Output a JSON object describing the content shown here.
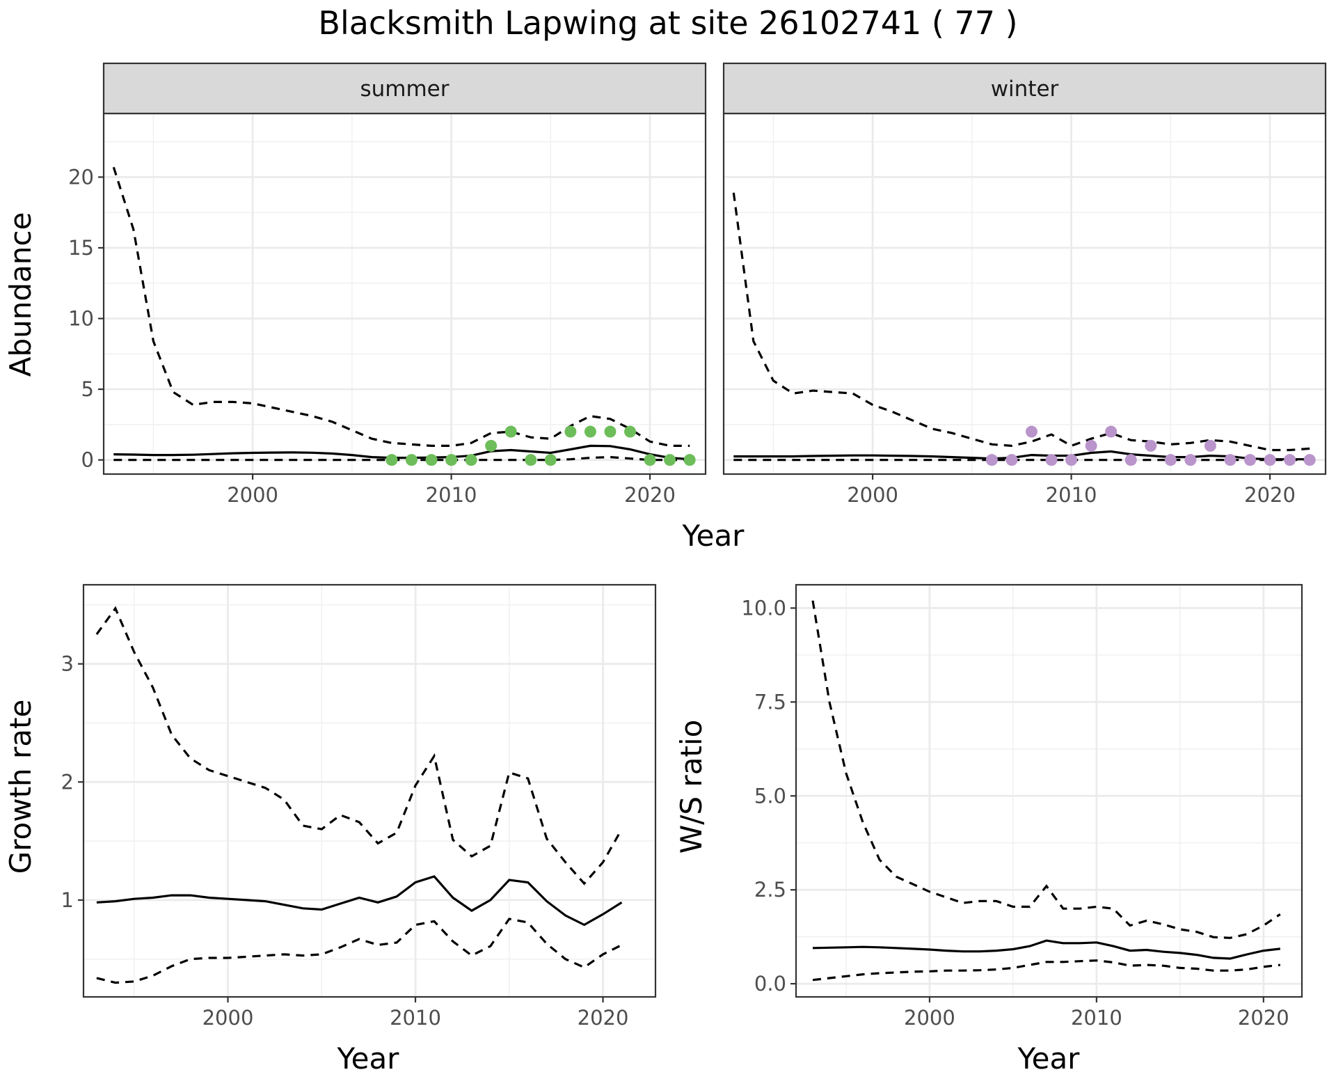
{
  "figure": {
    "title": "Blacksmith Lapwing at site 26102741 ( 77 )"
  },
  "chart_data": [
    {
      "id": "abundance",
      "type": "line",
      "facets": [
        "summer",
        "winter"
      ],
      "xlabel": "Year",
      "ylabel": "Abundance",
      "xlim": [
        1992.5,
        2022.8
      ],
      "ylim": [
        -1.0,
        24.5
      ],
      "xticks": [
        2000,
        2010,
        2020
      ],
      "yticks": [
        0,
        5,
        10,
        15,
        20
      ],
      "grid": true,
      "legend": "none",
      "colors": {
        "summer_points": "#6dbd5a",
        "winter_points": "#b995cb",
        "lines": "#000000",
        "strip_bg": "#d9d9d9"
      },
      "panels": [
        {
          "facet": "summer",
          "x": [
            1993,
            1994,
            1995,
            1996,
            1997,
            1998,
            1999,
            2000,
            2001,
            2002,
            2003,
            2004,
            2005,
            2006,
            2007,
            2008,
            2009,
            2010,
            2011,
            2012,
            2013,
            2014,
            2015,
            2016,
            2017,
            2018,
            2019,
            2020,
            2021,
            2022
          ],
          "mean": [
            0.4,
            0.38,
            0.35,
            0.35,
            0.37,
            0.42,
            0.47,
            0.5,
            0.52,
            0.53,
            0.51,
            0.45,
            0.35,
            0.2,
            0.15,
            0.15,
            0.17,
            0.2,
            0.3,
            0.62,
            0.7,
            0.6,
            0.5,
            0.75,
            1.0,
            0.98,
            0.75,
            0.4,
            0.15,
            0.05
          ],
          "upper": [
            20.7,
            16.3,
            8.4,
            4.8,
            3.9,
            4.1,
            4.1,
            4.0,
            3.7,
            3.4,
            3.1,
            2.7,
            2.1,
            1.5,
            1.2,
            1.1,
            1.0,
            1.0,
            1.2,
            1.9,
            2.0,
            1.6,
            1.5,
            2.4,
            3.1,
            2.9,
            2.2,
            1.3,
            1.0,
            1.0
          ],
          "lower": [
            0,
            0,
            0,
            0,
            0,
            0,
            0,
            0,
            0,
            0,
            0,
            0,
            0,
            0,
            0,
            0,
            0,
            0,
            0,
            0,
            0,
            0,
            0,
            0.05,
            0.15,
            0.2,
            0.1,
            0,
            0,
            0
          ],
          "points": {
            "x": [
              2007,
              2008,
              2009,
              2010,
              2011,
              2012,
              2013,
              2014,
              2015,
              2016,
              2017,
              2018,
              2019,
              2020,
              2021,
              2022
            ],
            "y": [
              0,
              0,
              0,
              0,
              0,
              1,
              2,
              0,
              0,
              2,
              2,
              2,
              2,
              0,
              0,
              0
            ]
          }
        },
        {
          "facet": "winter",
          "x": [
            1993,
            1994,
            1995,
            1996,
            1997,
            1998,
            1999,
            2000,
            2001,
            2002,
            2003,
            2004,
            2005,
            2006,
            2007,
            2008,
            2009,
            2010,
            2011,
            2012,
            2013,
            2014,
            2015,
            2016,
            2017,
            2018,
            2019,
            2020,
            2021,
            2022
          ],
          "mean": [
            0.25,
            0.25,
            0.25,
            0.25,
            0.28,
            0.3,
            0.32,
            0.32,
            0.3,
            0.28,
            0.25,
            0.2,
            0.15,
            0.1,
            0.15,
            0.35,
            0.3,
            0.3,
            0.5,
            0.6,
            0.4,
            0.3,
            0.2,
            0.2,
            0.3,
            0.25,
            0.1,
            0.05,
            0.05,
            0.05
          ],
          "upper": [
            18.9,
            8.4,
            5.6,
            4.7,
            4.9,
            4.8,
            4.7,
            3.9,
            3.4,
            2.8,
            2.2,
            1.9,
            1.5,
            1.1,
            1.0,
            1.3,
            1.8,
            1.0,
            1.5,
            1.9,
            1.4,
            1.3,
            1.1,
            1.2,
            1.4,
            1.3,
            1.0,
            0.7,
            0.7,
            0.8
          ],
          "lower": [
            0,
            0,
            0,
            0,
            0,
            0,
            0,
            0,
            0,
            0,
            0,
            0,
            0,
            0,
            0,
            0,
            0,
            0,
            0,
            0,
            0,
            0,
            0,
            0,
            0,
            0,
            0,
            0,
            0,
            0
          ],
          "points": {
            "x": [
              2006,
              2007,
              2008,
              2009,
              2010,
              2011,
              2012,
              2013,
              2014,
              2015,
              2016,
              2017,
              2018,
              2019,
              2020,
              2021,
              2022
            ],
            "y": [
              0,
              0,
              2,
              0,
              0,
              1,
              2,
              0,
              1,
              0,
              0,
              1,
              0,
              0,
              0,
              0,
              0
            ]
          }
        }
      ]
    },
    {
      "id": "growth",
      "type": "line",
      "xlabel": "Year",
      "ylabel": "Growth rate",
      "xlim": [
        1992.3,
        2022.8
      ],
      "ylim": [
        0.18,
        3.67
      ],
      "xticks": [
        2000,
        2010,
        2020
      ],
      "yticks": [
        1,
        2,
        3
      ],
      "grid": true,
      "legend": "none",
      "x": [
        1993,
        1994,
        1995,
        1996,
        1997,
        1998,
        1999,
        2000,
        2001,
        2002,
        2003,
        2004,
        2005,
        2006,
        2007,
        2008,
        2009,
        2010,
        2011,
        2012,
        2013,
        2014,
        2015,
        2016,
        2017,
        2018,
        2019,
        2020,
        2021
      ],
      "mean": [
        0.98,
        0.99,
        1.01,
        1.02,
        1.04,
        1.04,
        1.02,
        1.01,
        1.0,
        0.99,
        0.96,
        0.93,
        0.92,
        0.97,
        1.02,
        0.98,
        1.03,
        1.15,
        1.2,
        1.02,
        0.91,
        1.0,
        1.17,
        1.15,
        0.99,
        0.87,
        0.79,
        0.88,
        0.98
      ],
      "upper": [
        3.25,
        3.47,
        3.1,
        2.8,
        2.4,
        2.2,
        2.1,
        2.05,
        2.0,
        1.95,
        1.85,
        1.63,
        1.6,
        1.72,
        1.66,
        1.48,
        1.57,
        1.97,
        2.22,
        1.51,
        1.37,
        1.46,
        2.08,
        2.03,
        1.52,
        1.32,
        1.14,
        1.32,
        1.6
      ],
      "lower": [
        0.34,
        0.3,
        0.31,
        0.36,
        0.44,
        0.5,
        0.51,
        0.51,
        0.52,
        0.53,
        0.54,
        0.53,
        0.54,
        0.6,
        0.67,
        0.62,
        0.64,
        0.79,
        0.82,
        0.65,
        0.53,
        0.61,
        0.84,
        0.81,
        0.63,
        0.5,
        0.43,
        0.54,
        0.62
      ]
    },
    {
      "id": "ratio",
      "type": "line",
      "xlabel": "Year",
      "ylabel": "W/S ratio",
      "xlim": [
        1992.0,
        2022.3
      ],
      "ylim": [
        -0.35,
        10.62
      ],
      "xticks": [
        2000,
        2010,
        2020
      ],
      "yticks": [
        0.0,
        2.5,
        5.0,
        7.5,
        10.0
      ],
      "ytick_labels": [
        "0.0",
        "2.5",
        "5.0",
        "7.5",
        "10.0"
      ],
      "grid": true,
      "legend": "none",
      "x": [
        1993,
        1994,
        1995,
        1996,
        1997,
        1998,
        1999,
        2000,
        2001,
        2002,
        2003,
        2004,
        2005,
        2006,
        2007,
        2008,
        2009,
        2010,
        2011,
        2012,
        2013,
        2014,
        2015,
        2016,
        2017,
        2018,
        2019,
        2020,
        2021
      ],
      "mean": [
        0.95,
        0.96,
        0.97,
        0.98,
        0.97,
        0.95,
        0.93,
        0.91,
        0.88,
        0.86,
        0.86,
        0.88,
        0.92,
        1.0,
        1.15,
        1.08,
        1.08,
        1.1,
        1.0,
        0.88,
        0.9,
        0.85,
        0.82,
        0.77,
        0.69,
        0.67,
        0.78,
        0.88,
        0.93
      ],
      "upper": [
        10.2,
        7.5,
        5.6,
        4.3,
        3.3,
        2.85,
        2.65,
        2.45,
        2.3,
        2.15,
        2.2,
        2.2,
        2.05,
        2.05,
        2.6,
        2.0,
        2.0,
        2.05,
        2.0,
        1.55,
        1.68,
        1.58,
        1.45,
        1.38,
        1.24,
        1.22,
        1.32,
        1.55,
        1.85
      ],
      "lower": [
        0.1,
        0.15,
        0.2,
        0.25,
        0.28,
        0.3,
        0.32,
        0.33,
        0.35,
        0.35,
        0.36,
        0.38,
        0.42,
        0.5,
        0.58,
        0.58,
        0.6,
        0.62,
        0.57,
        0.48,
        0.5,
        0.48,
        0.42,
        0.4,
        0.35,
        0.35,
        0.38,
        0.45,
        0.5
      ]
    }
  ]
}
